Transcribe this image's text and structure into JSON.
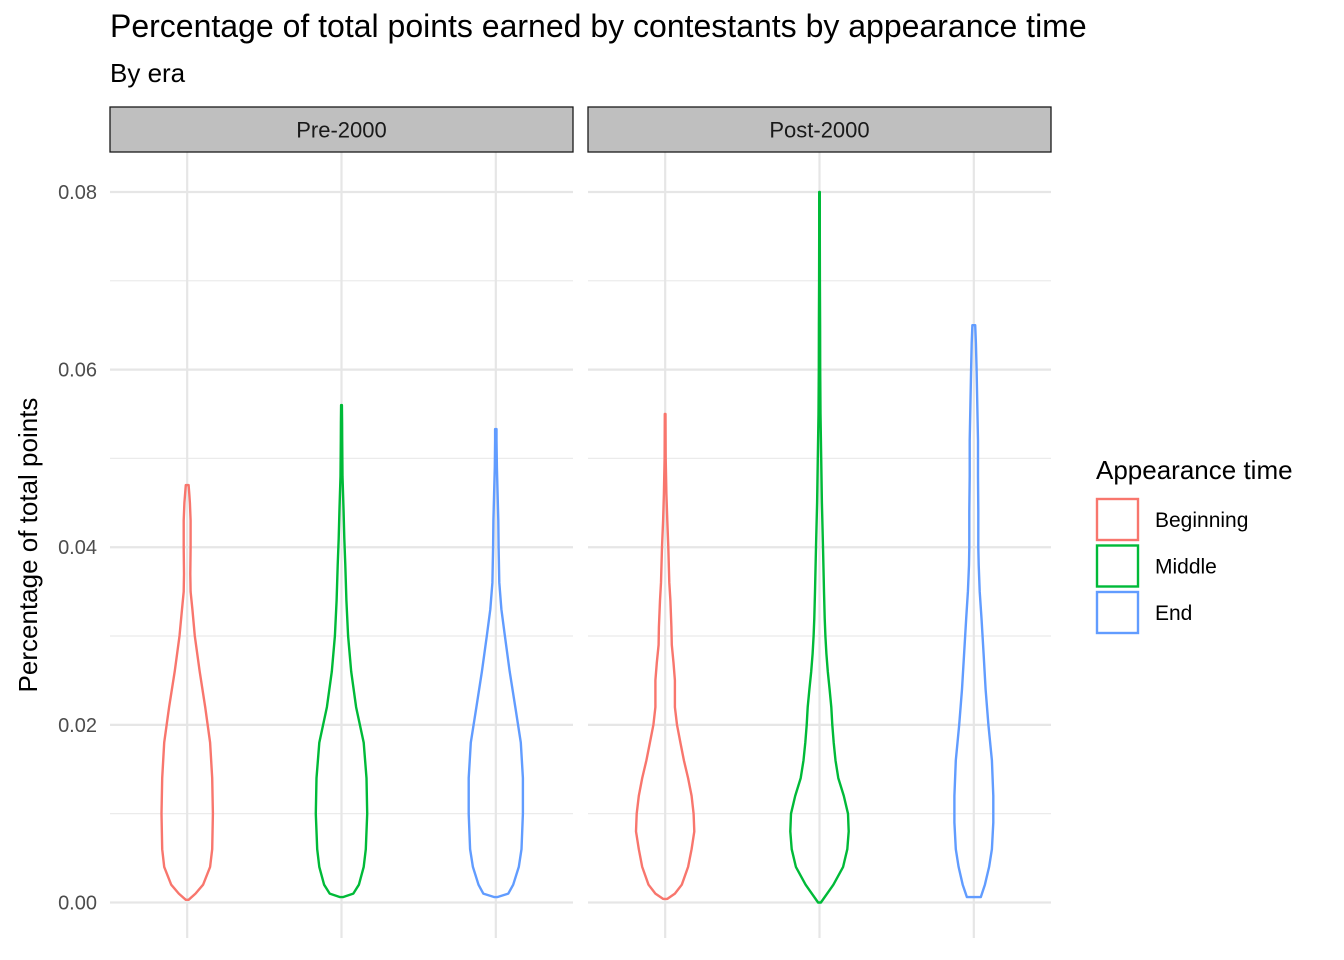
{
  "title": "Percentage of total points earned by contestants by appearance time",
  "subtitle": "By era",
  "chart_data": {
    "type": "violin",
    "title": "Percentage of total points earned by contestants by appearance time",
    "subtitle": "By era",
    "ylabel": "Percentage of total points",
    "xlabel": "",
    "ylim": [
      -0.004,
      0.0845
    ],
    "yticks": [
      0.0,
      0.02,
      0.04,
      0.06,
      0.08
    ],
    "ytick_labels": [
      "0.00",
      "0.02",
      "0.04",
      "0.06",
      "0.08"
    ],
    "grid": true,
    "legend": {
      "title": "Appearance time",
      "placement": "right",
      "items": [
        "Beginning",
        "Middle",
        "End"
      ]
    },
    "colors": {
      "Beginning": "#F8766D",
      "Middle": "#00BA38",
      "End": "#619CFF"
    },
    "facets": [
      {
        "label": "Pre-2000",
        "violins": [
          {
            "group": "Beginning",
            "outline": [
              [
                0.0003,
                0.02
              ],
              [
                0.001,
                0.12
              ],
              [
                0.002,
                0.23
              ],
              [
                0.004,
                0.33
              ],
              [
                0.006,
                0.36
              ],
              [
                0.01,
                0.37
              ],
              [
                0.014,
                0.36
              ],
              [
                0.018,
                0.33
              ],
              [
                0.022,
                0.26
              ],
              [
                0.026,
                0.18
              ],
              [
                0.03,
                0.11
              ],
              [
                0.033,
                0.075
              ],
              [
                0.035,
                0.05
              ],
              [
                0.037,
                0.045
              ],
              [
                0.04,
                0.05
              ],
              [
                0.043,
                0.05
              ],
              [
                0.045,
                0.04
              ],
              [
                0.046,
                0.03
              ],
              [
                0.047,
                0.02
              ]
            ]
          },
          {
            "group": "Middle",
            "outline": [
              [
                0.0006,
                0.02
              ],
              [
                0.001,
                0.17
              ],
              [
                0.002,
                0.25
              ],
              [
                0.004,
                0.32
              ],
              [
                0.006,
                0.35
              ],
              [
                0.01,
                0.37
              ],
              [
                0.014,
                0.36
              ],
              [
                0.018,
                0.32
              ],
              [
                0.022,
                0.21
              ],
              [
                0.026,
                0.14
              ],
              [
                0.03,
                0.095
              ],
              [
                0.034,
                0.07
              ],
              [
                0.038,
                0.055
              ],
              [
                0.041,
                0.04
              ],
              [
                0.044,
                0.03
              ],
              [
                0.048,
                0.015
              ],
              [
                0.052,
                0.01
              ],
              [
                0.054,
                0.008
              ],
              [
                0.056,
                0.006
              ]
            ]
          },
          {
            "group": "End",
            "outline": [
              [
                0.0006,
                0.02
              ],
              [
                0.001,
                0.18
              ],
              [
                0.002,
                0.25
              ],
              [
                0.004,
                0.33
              ],
              [
                0.006,
                0.37
              ],
              [
                0.01,
                0.39
              ],
              [
                0.014,
                0.39
              ],
              [
                0.018,
                0.36
              ],
              [
                0.022,
                0.28
              ],
              [
                0.026,
                0.2
              ],
              [
                0.03,
                0.13
              ],
              [
                0.033,
                0.08
              ],
              [
                0.036,
                0.05
              ],
              [
                0.04,
                0.04
              ],
              [
                0.043,
                0.035
              ],
              [
                0.046,
                0.025
              ],
              [
                0.049,
                0.015
              ],
              [
                0.052,
                0.01
              ],
              [
                0.0533,
                0.01
              ]
            ]
          }
        ]
      },
      {
        "label": "Post-2000",
        "violins": [
          {
            "group": "Beginning",
            "outline": [
              [
                0.0004,
                0.03
              ],
              [
                0.001,
                0.14
              ],
              [
                0.002,
                0.24
              ],
              [
                0.004,
                0.33
              ],
              [
                0.006,
                0.38
              ],
              [
                0.008,
                0.42
              ],
              [
                0.01,
                0.41
              ],
              [
                0.012,
                0.38
              ],
              [
                0.014,
                0.33
              ],
              [
                0.016,
                0.27
              ],
              [
                0.018,
                0.22
              ],
              [
                0.02,
                0.17
              ],
              [
                0.022,
                0.14
              ],
              [
                0.025,
                0.14
              ],
              [
                0.027,
                0.12
              ],
              [
                0.029,
                0.095
              ],
              [
                0.031,
                0.09
              ],
              [
                0.034,
                0.075
              ],
              [
                0.036,
                0.06
              ],
              [
                0.04,
                0.045
              ],
              [
                0.043,
                0.03
              ],
              [
                0.046,
                0.018
              ],
              [
                0.05,
                0.008
              ],
              [
                0.055,
                0.005
              ]
            ]
          },
          {
            "group": "Middle",
            "outline": [
              [
                0.0,
                0.02
              ],
              [
                0.002,
                0.2
              ],
              [
                0.004,
                0.34
              ],
              [
                0.006,
                0.4
              ],
              [
                0.008,
                0.42
              ],
              [
                0.01,
                0.41
              ],
              [
                0.012,
                0.35
              ],
              [
                0.014,
                0.27
              ],
              [
                0.016,
                0.23
              ],
              [
                0.018,
                0.205
              ],
              [
                0.02,
                0.185
              ],
              [
                0.022,
                0.17
              ],
              [
                0.024,
                0.145
              ],
              [
                0.026,
                0.12
              ],
              [
                0.028,
                0.1
              ],
              [
                0.03,
                0.085
              ],
              [
                0.032,
                0.075
              ],
              [
                0.035,
                0.065
              ],
              [
                0.04,
                0.05
              ],
              [
                0.045,
                0.035
              ],
              [
                0.05,
                0.025
              ],
              [
                0.055,
                0.015
              ],
              [
                0.06,
                0.01
              ],
              [
                0.065,
                0.008
              ],
              [
                0.07,
                0.006
              ],
              [
                0.075,
                0.005
              ],
              [
                0.08,
                0.005
              ]
            ]
          },
          {
            "group": "End",
            "outline": [
              [
                0.0006,
                0.1
              ],
              [
                0.002,
                0.16
              ],
              [
                0.004,
                0.22
              ],
              [
                0.006,
                0.26
              ],
              [
                0.009,
                0.28
              ],
              [
                0.012,
                0.28
              ],
              [
                0.016,
                0.26
              ],
              [
                0.02,
                0.21
              ],
              [
                0.024,
                0.17
              ],
              [
                0.028,
                0.14
              ],
              [
                0.032,
                0.11
              ],
              [
                0.035,
                0.085
              ],
              [
                0.038,
                0.07
              ],
              [
                0.04,
                0.065
              ],
              [
                0.044,
                0.065
              ],
              [
                0.048,
                0.06
              ],
              [
                0.052,
                0.06
              ],
              [
                0.056,
                0.05
              ],
              [
                0.06,
                0.04
              ],
              [
                0.063,
                0.03
              ],
              [
                0.065,
                0.02
              ]
            ]
          }
        ]
      }
    ]
  }
}
